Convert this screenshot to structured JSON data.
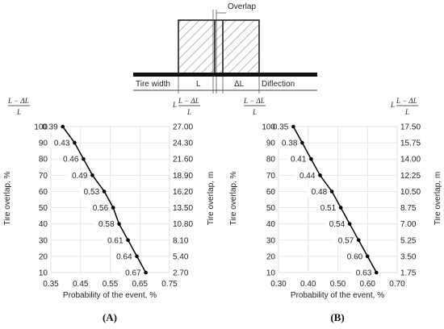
{
  "diagram": {
    "overlap_label": "Overlap",
    "tire_width_label": "Tire width",
    "l_label": "L",
    "delta_l_label": "ΔL",
    "deflection_label": "Diflection"
  },
  "fraction": {
    "prefix": "L",
    "numerator": "L − ΔL",
    "denominator": "L"
  },
  "chart_data": [
    {
      "type": "line",
      "panel_label": "(A)",
      "xlabel": "Probability of the event, %",
      "ylabel": "Tire overlap, %",
      "ylabel_right": "Tire overlap, m",
      "xlim": [
        0.35,
        0.75
      ],
      "ylim": [
        10,
        100
      ],
      "x_ticks": [
        "0.35",
        "0.45",
        "0.55",
        "0.65",
        "0.75"
      ],
      "y_ticks": [
        "10",
        "20",
        "30",
        "40",
        "50",
        "60",
        "70",
        "80",
        "90",
        "100"
      ],
      "y2_ticks": [
        "2.70",
        "5.40",
        "8.10",
        "10.80",
        "13.50",
        "16.20",
        "18.90",
        "21.60",
        "24.30",
        "27.00"
      ],
      "x": [
        0.39,
        0.43,
        0.46,
        0.49,
        0.53,
        0.56,
        0.58,
        0.61,
        0.64,
        0.67
      ],
      "y": [
        100,
        90,
        80,
        70,
        60,
        50,
        40,
        30,
        20,
        10
      ],
      "point_labels": [
        "0.39",
        "0.43",
        "0.46",
        "0.49",
        "0.53",
        "0.56",
        "0.58",
        "0.61",
        "0.64",
        "0.67"
      ]
    },
    {
      "type": "line",
      "panel_label": "(B)",
      "xlabel": "Probability of the event, %",
      "ylabel": "Tire overlap, %",
      "ylabel_right": "Tire overlap, m",
      "xlim": [
        0.3,
        0.7
      ],
      "ylim": [
        10,
        100
      ],
      "x_ticks": [
        "0.30",
        "0.40",
        "0.50",
        "0.60",
        "0.70"
      ],
      "y_ticks": [
        "10",
        "20",
        "30",
        "40",
        "50",
        "60",
        "70",
        "80",
        "90",
        "100"
      ],
      "y2_ticks": [
        "1.75",
        "3.50",
        "5.25",
        "7.00",
        "8.75",
        "10.50",
        "12.25",
        "14.00",
        "15.75",
        "17.50"
      ],
      "x": [
        0.35,
        0.38,
        0.41,
        0.44,
        0.48,
        0.51,
        0.54,
        0.57,
        0.6,
        0.63
      ],
      "y": [
        100,
        90,
        80,
        70,
        60,
        50,
        40,
        30,
        20,
        10
      ],
      "point_labels": [
        "0.35",
        "0.38",
        "0.41",
        "0.44",
        "0.48",
        "0.51",
        "0.54",
        "0.57",
        "0.60",
        "0.63"
      ]
    }
  ]
}
